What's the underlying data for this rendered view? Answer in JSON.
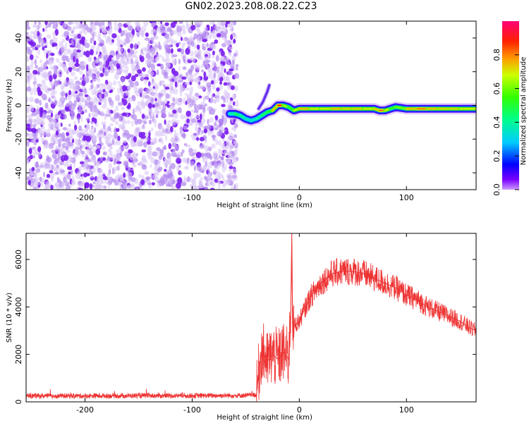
{
  "title": "GN02.2023.208.08.22.C23",
  "chart_data": [
    {
      "type": "heatmap",
      "xlabel": "Height of straight line (km)",
      "ylabel": "Frequency (Hz)",
      "xlim": [
        -255,
        165
      ],
      "ylim": [
        -50,
        50
      ],
      "xticks": [
        -200,
        -100,
        0,
        100
      ],
      "yticks": [
        -40,
        -20,
        0,
        20,
        40
      ],
      "colorbar": {
        "label": "Normalized spectral amplitude",
        "range": [
          0.0,
          1.0
        ],
        "ticks": [
          0.0,
          0.2,
          0.4,
          0.6,
          0.8
        ]
      },
      "noise_region_x": [
        -255,
        -62
      ],
      "signal_track": {
        "x": [
          -65,
          -60,
          -55,
          -50,
          -45,
          -40,
          -35,
          -30,
          -25,
          -20,
          -15,
          -10,
          -5,
          0,
          10,
          20,
          30,
          40,
          50,
          60,
          70,
          75,
          80,
          85,
          90,
          100,
          110,
          120,
          130,
          140,
          150,
          165
        ],
        "y": [
          -5,
          -5,
          -6,
          -8,
          -9,
          -8,
          -6,
          -4,
          -3,
          0,
          0,
          -1,
          -3,
          -2,
          -2,
          -2,
          -2,
          -2,
          -2,
          -2,
          -2,
          -3,
          -3,
          -2,
          -1,
          -2,
          -2,
          -2,
          -2,
          -2,
          -2,
          -2
        ],
        "amplitude": [
          0.3,
          0.5,
          0.45,
          0.4,
          0.35,
          0.4,
          0.45,
          0.5,
          0.55,
          0.95,
          0.8,
          0.5,
          0.6,
          0.75,
          0.75,
          0.65,
          0.75,
          0.75,
          0.7,
          0.75,
          0.65,
          0.85,
          0.8,
          0.6,
          0.5,
          0.7,
          0.8,
          0.8,
          0.7,
          0.75,
          0.7,
          0.7
        ]
      },
      "branch": {
        "x": [
          -38,
          -34,
          -30,
          -28
        ],
        "y": [
          -2,
          2,
          8,
          12
        ]
      }
    },
    {
      "type": "line",
      "xlabel": "Height of straight line (km)",
      "ylabel": "SNR (10 * v/v)",
      "xlim": [
        -255,
        165
      ],
      "ylim": [
        0,
        7100
      ],
      "xticks": [
        -200,
        -100,
        0,
        100
      ],
      "yticks": [
        0,
        2000,
        4000,
        6000
      ],
      "color": "#ee3333",
      "series": [
        {
          "x": [
            -255,
            -200,
            -150,
            -100,
            -50,
            -40,
            -38,
            -35,
            -30,
            -25,
            -20,
            -15,
            -10,
            -8,
            -7,
            -6,
            -5,
            0,
            10,
            20,
            30,
            40,
            50,
            60,
            70,
            80,
            90,
            100,
            110,
            120,
            130,
            140,
            150,
            160,
            165
          ],
          "values": [
            250,
            250,
            260,
            260,
            270,
            300,
            1200,
            2200,
            1700,
            2000,
            1800,
            2100,
            1800,
            3800,
            7100,
            2600,
            3200,
            3400,
            4400,
            5000,
            5400,
            5500,
            5500,
            5400,
            5200,
            5000,
            4800,
            4500,
            4300,
            4000,
            3800,
            3600,
            3400,
            3100,
            3000
          ]
        }
      ]
    }
  ]
}
